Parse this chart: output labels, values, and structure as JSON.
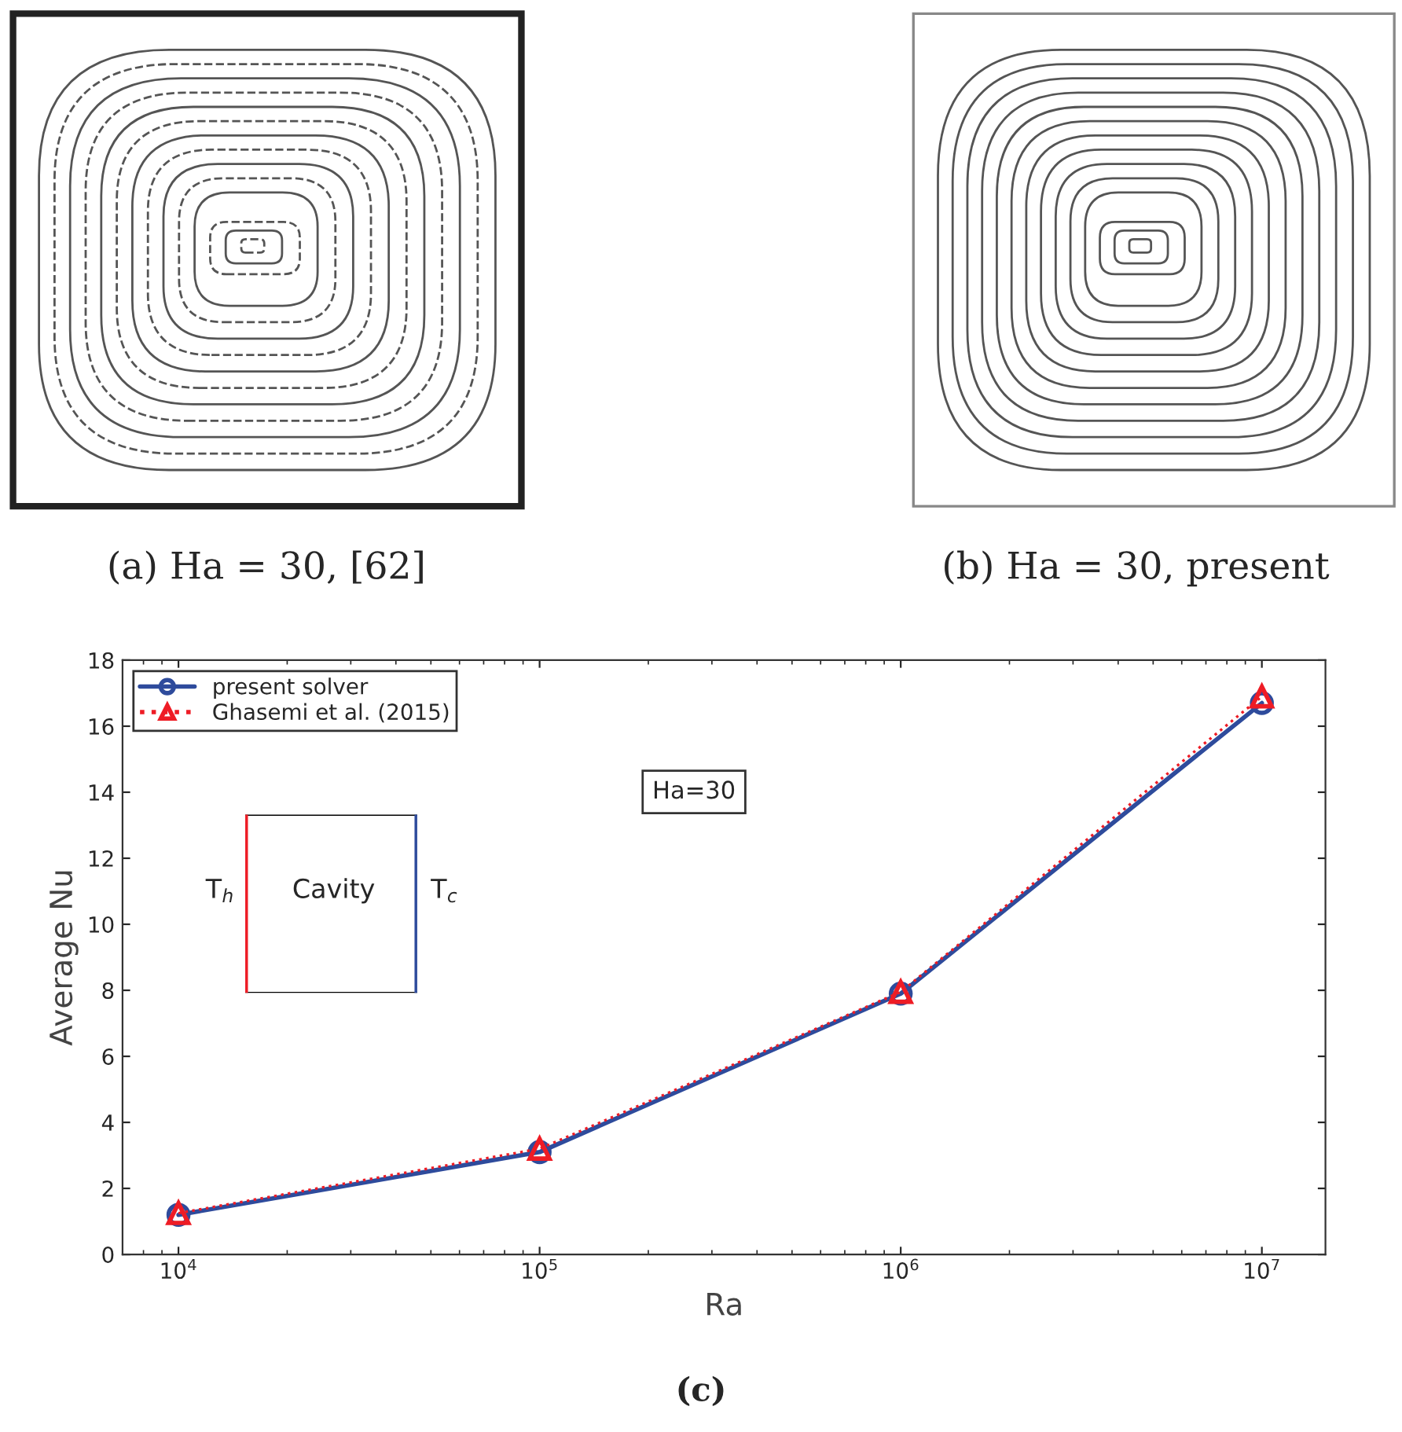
{
  "chart_data": {
    "type": "line",
    "xlabel": "Ra",
    "ylabel": "Average Nu",
    "log": "x",
    "x": [
      10000,
      100000,
      1000000,
      10000000
    ],
    "series": [
      {
        "name": "present solver",
        "color": "#2e4b9c",
        "values": [
          1.2,
          3.1,
          7.9,
          16.7
        ],
        "marker": "circle",
        "line_style": "solid"
      },
      {
        "name": "Ghasemi et al. (2015)",
        "color": "#ee1c25",
        "values": [
          1.25,
          3.2,
          7.95,
          16.9
        ],
        "marker": "triangle",
        "line_style": "dotted"
      }
    ],
    "xlim": [
      7000,
      15000000
    ],
    "xticks": [
      {
        "value": 10000,
        "label": "10$^{4}$"
      },
      {
        "value": 100000,
        "label": "10$^{5}$"
      },
      {
        "value": 1000000,
        "label": "10$^{6}$"
      },
      {
        "value": 10000000,
        "label": "10$^{7}$"
      }
    ],
    "ylim": [
      0,
      18
    ],
    "yticks": [
      0,
      2,
      4,
      6,
      8,
      10,
      12,
      14,
      16,
      18
    ],
    "grid": false,
    "legend": "top left",
    "annotations": [
      "(a) Ha = 30, [62]",
      "(b) Ha = 30, present",
      "Ha=30",
      "T$_{h}$",
      "Cavity",
      "T$_{c}$",
      "(c)"
    ]
  }
}
